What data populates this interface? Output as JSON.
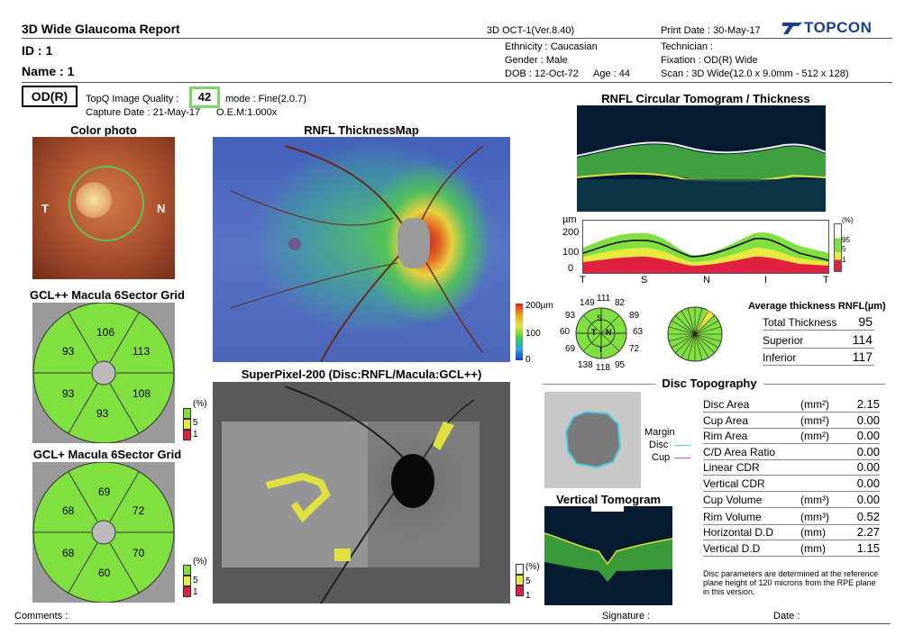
{
  "header": {
    "report_title": "3D Wide Glaucoma Report",
    "device": "3D OCT-1(Ver.8.40)",
    "print_date": "Print Date : 30-May-17",
    "brand": "TOPCON",
    "id": "ID : 1",
    "name": "Name : 1",
    "ethnicity": "Ethnicity : Caucasian",
    "gender": "Gender : Male",
    "dob": "DOB : 12-Oct-72",
    "age": "Age : 44",
    "technician": "Technician :",
    "fixation": "Fixation : OD(R) Wide",
    "scan": "Scan : 3D Wide(12.0 x 9.0mm - 512 x 128)"
  },
  "capture": {
    "eye": "OD(R)",
    "topq_label": "TopQ Image Quality :",
    "topq_value": "42",
    "mode": "mode : Fine(2.0.7)",
    "capture_date": "Capture Date : 21-May-17",
    "oem": "O.E.M:1.000x"
  },
  "color_photo": {
    "title": "Color photo",
    "t": "T",
    "n": "N"
  },
  "gcl_pp": {
    "title": "GCL++ Macula 6Sector Grid",
    "values": [
      "93",
      "106",
      "113",
      "93",
      "108",
      "93"
    ]
  },
  "gcl_p": {
    "title": "GCL+ Macula 6Sector Grid",
    "values": [
      "68",
      "69",
      "72",
      "68",
      "70",
      "60"
    ]
  },
  "legend": {
    "pct": "(%)",
    "l5": "5",
    "l1": "1",
    "l95": "95"
  },
  "rnfl_map": {
    "title": "RNFL ThicknessMap",
    "s200": "200µm",
    "s100": "100",
    "s0": "0"
  },
  "superpixel": {
    "title": "SuperPixel-200 (Disc:RNFL/Macula:GCL++)"
  },
  "circular": {
    "title": "RNFL Circular Tomogram / Thickness",
    "unit": "µm",
    "y200": "200",
    "y100": "100",
    "y0": "0",
    "x_labels": [
      "T",
      "S",
      "N",
      "I",
      "T"
    ]
  },
  "clock": {
    "values": [
      "149",
      "111",
      "82",
      "89",
      "63",
      "72",
      "95",
      "118",
      "138",
      "69",
      "60",
      "93"
    ],
    "quadrants": {
      "t": "T",
      "s": "S",
      "n": "N",
      "i": "I"
    }
  },
  "avg": {
    "title": "Average thickness RNFL(µm)",
    "rows": [
      {
        "label": "Total Thickness",
        "value": "95"
      },
      {
        "label": "Superior",
        "value": "114"
      },
      {
        "label": "Inferior",
        "value": "117"
      }
    ]
  },
  "disc_topo": {
    "title": "Disc Topography",
    "margin": "Margin",
    "disc": "Disc",
    "cup": "Cup",
    "colors": {
      "disc": "#4fd0e0",
      "cup": "#e040e0"
    }
  },
  "vertical_tomo": {
    "title": "Vertical Tomogram"
  },
  "disc_params": [
    {
      "label": "Disc Area",
      "unit": "(mm²)",
      "value": "2.15"
    },
    {
      "label": "Cup Area",
      "unit": "(mm²)",
      "value": "0.00"
    },
    {
      "label": "Rim Area",
      "unit": "(mm²)",
      "value": "0.00"
    },
    {
      "label": "C/D Area Ratio",
      "unit": "",
      "value": "0.00"
    },
    {
      "label": "Linear CDR",
      "unit": "",
      "value": "0.00"
    },
    {
      "label": "Vertical CDR",
      "unit": "",
      "value": "0.00"
    },
    {
      "label": "Cup Volume",
      "unit": "(mm³)",
      "value": "0.00"
    },
    {
      "label": "Rim Volume",
      "unit": "(mm³)",
      "value": "0.52"
    },
    {
      "label": "Horizontal D.D",
      "unit": "(mm)",
      "value": "2.27"
    },
    {
      "label": "Vertical D.D",
      "unit": "(mm)",
      "value": "1.15"
    }
  ],
  "disc_note": "Disc parameters are determined at the reference plane height of 120 microns from the RPE plane in this version.",
  "footer": {
    "comments": "Comments :",
    "signature": "Signature :",
    "date": "Date :"
  }
}
